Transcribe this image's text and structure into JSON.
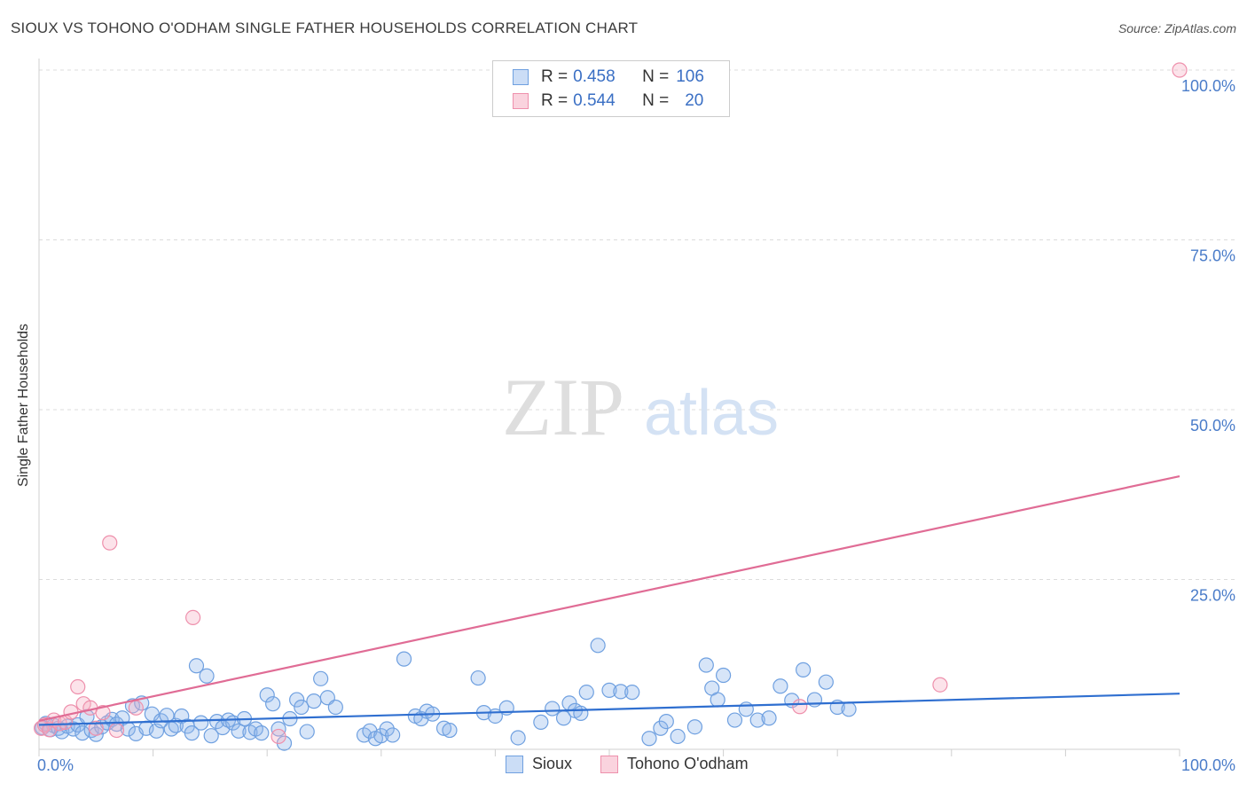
{
  "header": {
    "title": "SIOUX VS TOHONO O'ODHAM SINGLE FATHER HOUSEHOLDS CORRELATION CHART",
    "source": "Source: ZipAtlas.com"
  },
  "watermark": {
    "zip": "ZIP",
    "atlas": "atlas"
  },
  "legend": {
    "rows": [
      {
        "r_label": "R = ",
        "r_value": "0.458",
        "n_label": "N = ",
        "n_value": "106",
        "color": "#6fa0e0"
      },
      {
        "r_label": "R = ",
        "r_value": "0.544",
        "n_label": "N = ",
        "n_value": "20",
        "color": "#ee90ac"
      }
    ]
  },
  "chart_data": {
    "type": "scatter",
    "title": "SIOUX VS TOHONO O'ODHAM SINGLE FATHER HOUSEHOLDS CORRELATION CHART",
    "xlabel": "",
    "ylabel": "Single Father Households",
    "xlim": [
      0,
      100
    ],
    "ylim": [
      0,
      100
    ],
    "x_tick_labels": [
      "0.0%",
      "100.0%"
    ],
    "y_tick_labels": [
      "100.0%",
      "75.0%",
      "50.0%",
      "25.0%"
    ],
    "y_ticks": [
      100,
      75,
      50,
      25
    ],
    "grid": true,
    "series": [
      {
        "name": "Sioux",
        "color": "#6fa0e0",
        "fill": "rgba(140,180,235,0.35)",
        "trend": {
          "x": [
            0,
            100
          ],
          "y": [
            3.6,
            8.2
          ]
        },
        "points": [
          [
            0.3,
            3.2
          ],
          [
            0.6,
            3.8
          ],
          [
            1.0,
            2.9
          ],
          [
            1.3,
            3.5
          ],
          [
            1.7,
            3.1
          ],
          [
            2.0,
            2.6
          ],
          [
            2.5,
            3.4
          ],
          [
            3.0,
            3.0
          ],
          [
            3.4,
            3.6
          ],
          [
            3.8,
            2.4
          ],
          [
            4.2,
            4.8
          ],
          [
            4.6,
            2.8
          ],
          [
            5.0,
            2.2
          ],
          [
            5.5,
            3.3
          ],
          [
            6.0,
            3.9
          ],
          [
            6.4,
            4.4
          ],
          [
            6.8,
            3.7
          ],
          [
            7.3,
            4.6
          ],
          [
            7.8,
            3.0
          ],
          [
            8.2,
            6.4
          ],
          [
            8.5,
            2.3
          ],
          [
            9.0,
            6.8
          ],
          [
            9.4,
            3.1
          ],
          [
            9.9,
            5.2
          ],
          [
            10.3,
            2.7
          ],
          [
            10.7,
            4.2
          ],
          [
            11.2,
            5.0
          ],
          [
            11.6,
            3.0
          ],
          [
            12.0,
            3.5
          ],
          [
            12.5,
            4.9
          ],
          [
            13.0,
            3.4
          ],
          [
            13.4,
            2.4
          ],
          [
            13.8,
            12.3
          ],
          [
            14.2,
            3.9
          ],
          [
            14.7,
            10.8
          ],
          [
            15.1,
            2.0
          ],
          [
            15.6,
            4.1
          ],
          [
            16.1,
            3.2
          ],
          [
            16.6,
            4.3
          ],
          [
            17.0,
            3.9
          ],
          [
            17.5,
            2.7
          ],
          [
            18.0,
            4.5
          ],
          [
            18.5,
            2.5
          ],
          [
            19.0,
            3.0
          ],
          [
            19.5,
            2.4
          ],
          [
            20.0,
            8.0
          ],
          [
            20.5,
            6.7
          ],
          [
            21.0,
            3.0
          ],
          [
            21.5,
            0.9
          ],
          [
            22.0,
            4.5
          ],
          [
            22.6,
            7.3
          ],
          [
            23.0,
            6.2
          ],
          [
            23.5,
            2.6
          ],
          [
            24.1,
            7.1
          ],
          [
            24.7,
            10.4
          ],
          [
            25.3,
            7.6
          ],
          [
            26.0,
            6.2
          ],
          [
            28.5,
            2.1
          ],
          [
            29.0,
            2.7
          ],
          [
            29.5,
            1.6
          ],
          [
            30.0,
            2.0
          ],
          [
            30.5,
            3.0
          ],
          [
            31.0,
            2.1
          ],
          [
            32.0,
            13.3
          ],
          [
            33.0,
            4.9
          ],
          [
            33.5,
            4.5
          ],
          [
            34.0,
            5.6
          ],
          [
            34.5,
            5.2
          ],
          [
            35.5,
            3.1
          ],
          [
            36.0,
            2.8
          ],
          [
            38.5,
            10.5
          ],
          [
            39.0,
            5.4
          ],
          [
            40.0,
            4.9
          ],
          [
            41.0,
            6.1
          ],
          [
            42.0,
            1.7
          ],
          [
            44.0,
            4.0
          ],
          [
            45.0,
            6.0
          ],
          [
            46.0,
            4.6
          ],
          [
            46.5,
            6.8
          ],
          [
            47.0,
            5.7
          ],
          [
            47.5,
            5.3
          ],
          [
            48.0,
            8.4
          ],
          [
            49.0,
            15.3
          ],
          [
            50.0,
            8.7
          ],
          [
            51.0,
            8.5
          ],
          [
            52.0,
            8.4
          ],
          [
            53.5,
            1.6
          ],
          [
            54.5,
            3.1
          ],
          [
            55.0,
            4.1
          ],
          [
            56.0,
            1.9
          ],
          [
            57.5,
            3.3
          ],
          [
            58.5,
            12.4
          ],
          [
            59.0,
            9.0
          ],
          [
            59.5,
            7.3
          ],
          [
            60.0,
            10.9
          ],
          [
            61.0,
            4.3
          ],
          [
            62.0,
            5.9
          ],
          [
            63.0,
            4.3
          ],
          [
            64.0,
            4.6
          ],
          [
            65.0,
            9.3
          ],
          [
            66.0,
            7.2
          ],
          [
            67.0,
            11.7
          ],
          [
            68.0,
            7.3
          ],
          [
            69.0,
            9.9
          ],
          [
            70.0,
            6.2
          ],
          [
            71.0,
            5.9
          ]
        ]
      },
      {
        "name": "Tohono O'odham",
        "color": "#ee90ac",
        "fill": "rgba(245,175,195,0.35)",
        "trend": {
          "x": [
            0,
            100
          ],
          "y": [
            4.2,
            40.2
          ]
        },
        "points": [
          [
            0.2,
            3.1
          ],
          [
            0.5,
            3.6
          ],
          [
            0.9,
            2.9
          ],
          [
            1.3,
            4.3
          ],
          [
            1.8,
            3.8
          ],
          [
            2.3,
            4.0
          ],
          [
            2.8,
            5.5
          ],
          [
            3.4,
            9.2
          ],
          [
            3.9,
            6.7
          ],
          [
            4.5,
            6.1
          ],
          [
            5.0,
            3.1
          ],
          [
            5.6,
            5.4
          ],
          [
            6.2,
            30.4
          ],
          [
            6.8,
            2.8
          ],
          [
            8.5,
            6.1
          ],
          [
            13.5,
            19.4
          ],
          [
            21.0,
            1.9
          ],
          [
            66.7,
            6.3
          ],
          [
            79.0,
            9.5
          ],
          [
            100.0,
            100.0
          ]
        ]
      }
    ]
  },
  "bottom_legend": [
    {
      "label": "Sioux",
      "color": "#6fa0e0"
    },
    {
      "label": "Tohono O'odham",
      "color": "#ee90ac"
    }
  ]
}
